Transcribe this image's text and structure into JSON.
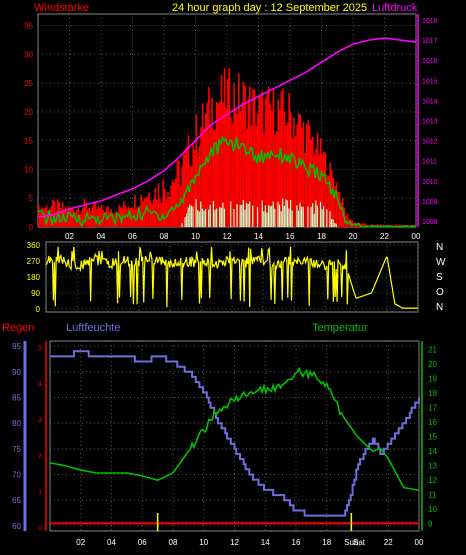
{
  "colors": {
    "red": "#ff0000",
    "magenta": "#ff00ff",
    "green": "#00c000",
    "mint": "#ccffcc",
    "yellow": "#ffff00",
    "blue": "#6f6fdc",
    "axis_text": "#ffffff",
    "grid": "#555555"
  },
  "labels": {
    "wind": "Windstärke",
    "title": "24 hour graph day : 12 September 2025",
    "pressure": "Luftdruck",
    "rain": "Regen",
    "humidity": "Luftfeuchte",
    "temperature": "Temperatur"
  },
  "chart_data": [
    {
      "type": "bar",
      "name": "wind-pressure",
      "x_ticks": [
        "02",
        "04",
        "06",
        "08",
        "10",
        "12",
        "14",
        "16",
        "18",
        "20",
        "22",
        "00"
      ],
      "y_left_ticks": [
        0,
        5,
        10,
        15,
        20,
        25,
        30,
        35
      ],
      "ylim_left": [
        0,
        37
      ],
      "y_right_ticks": [
        1008,
        1009,
        1010,
        1011,
        1012,
        1013,
        1014,
        1015,
        1016,
        1017,
        1018
      ],
      "ylim_right": [
        1007.7,
        1018.3
      ],
      "gust_envelope": [
        [
          0,
          4
        ],
        [
          1,
          5
        ],
        [
          2,
          4
        ],
        [
          3,
          5
        ],
        [
          4,
          4
        ],
        [
          5,
          4
        ],
        [
          6,
          6
        ],
        [
          7,
          8
        ],
        [
          8,
          10
        ],
        [
          9,
          13
        ],
        [
          10,
          20
        ],
        [
          11,
          26
        ],
        [
          12,
          28
        ],
        [
          13,
          27
        ],
        [
          14,
          25
        ],
        [
          15,
          25
        ],
        [
          16,
          24
        ],
        [
          17,
          20
        ],
        [
          18,
          15
        ],
        [
          19,
          8
        ],
        [
          19.5,
          3
        ],
        [
          20,
          1
        ],
        [
          21,
          0.5
        ],
        [
          22,
          0.5
        ],
        [
          23,
          0.5
        ],
        [
          24,
          0.5
        ]
      ],
      "wind_avg": [
        [
          0,
          2
        ],
        [
          1,
          1.5
        ],
        [
          2,
          1.5
        ],
        [
          3,
          1.5
        ],
        [
          4,
          1.5
        ],
        [
          5,
          1.5
        ],
        [
          6,
          2
        ],
        [
          7,
          2.5
        ],
        [
          8,
          2
        ],
        [
          9,
          4
        ],
        [
          10,
          9
        ],
        [
          11,
          13
        ],
        [
          12,
          15
        ],
        [
          13,
          14
        ],
        [
          14,
          12
        ],
        [
          15,
          13
        ],
        [
          16,
          12
        ],
        [
          17,
          10
        ],
        [
          18,
          9
        ],
        [
          19,
          5
        ],
        [
          19.5,
          1
        ],
        [
          20,
          0.5
        ],
        [
          21,
          0
        ],
        [
          22,
          0
        ],
        [
          23,
          0
        ],
        [
          24,
          0
        ]
      ],
      "wind_direction_band": [
        [
          9,
          0
        ],
        [
          9.5,
          5
        ],
        [
          10,
          5
        ],
        [
          11,
          5
        ],
        [
          12,
          5
        ],
        [
          13,
          5
        ],
        [
          14,
          5
        ],
        [
          15,
          5
        ],
        [
          16,
          5
        ],
        [
          17,
          4
        ],
        [
          18,
          5
        ],
        [
          18.5,
          3
        ],
        [
          19,
          0
        ]
      ],
      "pressure": [
        [
          0,
          1008.2
        ],
        [
          1,
          1008.3
        ],
        [
          2,
          1008.6
        ],
        [
          3,
          1008.8
        ],
        [
          4,
          1009.0
        ],
        [
          5,
          1009.3
        ],
        [
          6,
          1009.6
        ],
        [
          7,
          1010.0
        ],
        [
          8,
          1010.5
        ],
        [
          9,
          1011.2
        ],
        [
          10,
          1012.0
        ],
        [
          11,
          1012.8
        ],
        [
          12,
          1013.3
        ],
        [
          13,
          1013.8
        ],
        [
          14,
          1014.2
        ],
        [
          15,
          1014.6
        ],
        [
          16,
          1015.0
        ],
        [
          17,
          1015.4
        ],
        [
          18,
          1015.9
        ],
        [
          19,
          1016.4
        ],
        [
          20,
          1016.8
        ],
        [
          21,
          1017.0
        ],
        [
          22,
          1017.1
        ],
        [
          23,
          1017.0
        ],
        [
          24,
          1016.9
        ]
      ]
    },
    {
      "type": "line",
      "name": "wind-direction",
      "y_ticks": [
        0,
        90,
        180,
        270,
        360
      ],
      "ylim": [
        0,
        360
      ],
      "compass": [
        "N",
        "W",
        "S",
        "O",
        "N"
      ],
      "direction": [
        [
          0,
          270
        ],
        [
          1,
          280
        ],
        [
          2,
          230
        ],
        [
          3,
          290
        ],
        [
          4,
          250
        ],
        [
          5,
          270
        ],
        [
          6,
          260
        ],
        [
          7,
          280
        ],
        [
          8,
          250
        ],
        [
          9,
          270
        ],
        [
          10,
          260
        ],
        [
          11,
          250
        ],
        [
          12,
          280
        ],
        [
          13,
          260
        ],
        [
          14,
          270
        ],
        [
          15,
          250
        ],
        [
          16,
          280
        ],
        [
          17,
          260
        ],
        [
          18,
          250
        ],
        [
          19,
          255
        ],
        [
          19.5,
          200
        ],
        [
          20,
          60
        ],
        [
          21,
          90
        ],
        [
          22,
          300
        ],
        [
          22.5,
          30
        ],
        [
          23,
          5
        ],
        [
          24,
          5
        ]
      ]
    },
    {
      "type": "line",
      "name": "humidity-temperature",
      "x_ticks": [
        "02",
        "04",
        "06",
        "08",
        "10",
        "12",
        "14",
        "16",
        "18",
        "Sun",
        "Sat",
        "22",
        "00"
      ],
      "y_humidity_ticks": [
        60,
        65,
        70,
        75,
        80,
        85,
        90,
        95
      ],
      "ylim_humidity": [
        59,
        96
      ],
      "y_temp_ticks": [
        9,
        10,
        11,
        12,
        13,
        14,
        15,
        16,
        17,
        18,
        19,
        20,
        21
      ],
      "ylim_temp": [
        8.5,
        21.6
      ],
      "y_rain_ticks": [
        0,
        1,
        2,
        3,
        4,
        5
      ],
      "ylim_rain": [
        0,
        5
      ],
      "humidity": [
        [
          0,
          93
        ],
        [
          1,
          93
        ],
        [
          2,
          94
        ],
        [
          3,
          93
        ],
        [
          4,
          93
        ],
        [
          5,
          93
        ],
        [
          6,
          92
        ],
        [
          7,
          93
        ],
        [
          8,
          92
        ],
        [
          9,
          90
        ],
        [
          10,
          86
        ],
        [
          11,
          80
        ],
        [
          12,
          75
        ],
        [
          13,
          70
        ],
        [
          14,
          67
        ],
        [
          15,
          66
        ],
        [
          16,
          63
        ],
        [
          17,
          62
        ],
        [
          18,
          62
        ],
        [
          19,
          62
        ],
        [
          19.5,
          65
        ],
        [
          20,
          72
        ],
        [
          21,
          77
        ],
        [
          21.5,
          74
        ],
        [
          22,
          76
        ],
        [
          23,
          80
        ],
        [
          24,
          85
        ]
      ],
      "temperature": [
        [
          0,
          13.2
        ],
        [
          1,
          13.0
        ],
        [
          2,
          12.7
        ],
        [
          3,
          12.5
        ],
        [
          4,
          12.5
        ],
        [
          5,
          12.5
        ],
        [
          6,
          12.3
        ],
        [
          7,
          12.0
        ],
        [
          8,
          12.5
        ],
        [
          9,
          14.0
        ],
        [
          10,
          15.5
        ],
        [
          11,
          17.0
        ],
        [
          12,
          17.5
        ],
        [
          13,
          18.0
        ],
        [
          14,
          18.3
        ],
        [
          15,
          18.5
        ],
        [
          16,
          19.5
        ],
        [
          17,
          19.3
        ],
        [
          18,
          18.5
        ],
        [
          19,
          16.5
        ],
        [
          20,
          15.0
        ],
        [
          21,
          14.0
        ],
        [
          21.5,
          14.2
        ],
        [
          22,
          13.5
        ],
        [
          23,
          11.5
        ],
        [
          24,
          11.3
        ]
      ],
      "rain": [
        [
          0,
          0.1
        ],
        [
          24,
          0.1
        ]
      ]
    }
  ]
}
